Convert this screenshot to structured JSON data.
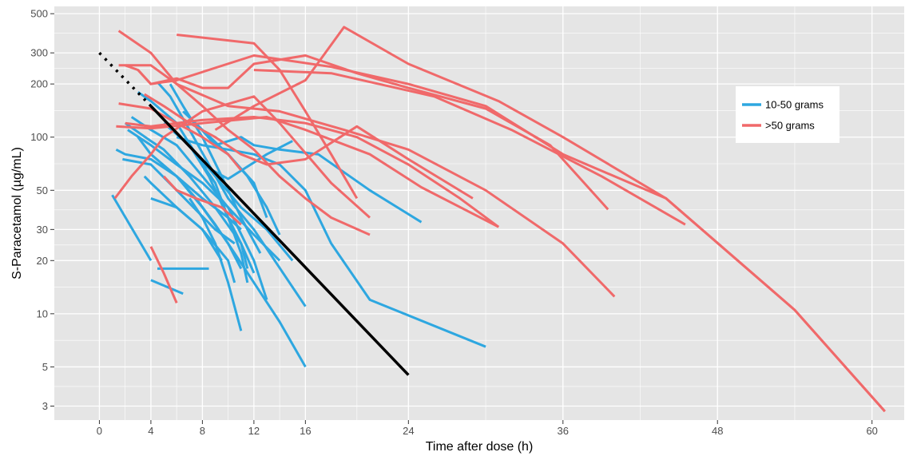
{
  "chart_data": {
    "type": "line",
    "title": "",
    "xlabel": "Time after dose (h)",
    "ylabel": "S-Paracetamol (µg/mL)",
    "x_scale": "linear",
    "y_scale": "log",
    "xlim": [
      -3.5,
      62.5
    ],
    "ylim": [
      2.5,
      550
    ],
    "x_ticks": [
      0,
      4,
      8,
      12,
      16,
      24,
      36,
      48,
      60
    ],
    "x_tick_labels": [
      "0",
      "4",
      "8",
      "12",
      "16",
      "24",
      "36",
      "48",
      "60"
    ],
    "y_ticks": [
      3,
      5,
      10,
      20,
      30,
      50,
      100,
      200,
      300,
      500
    ],
    "y_tick_labels": [
      "3",
      "5",
      "10",
      "20",
      "30",
      "50",
      "100",
      "200",
      "300",
      "500"
    ],
    "grid": true,
    "legend_position": "right",
    "colors": {
      "panel_background": "#e5e5e5",
      "grid_line": "#ffffff",
      "nomogram_line": "#000000"
    },
    "series": [
      {
        "name": "10-50 grams",
        "color": "#2ea7e0",
        "lines": [
          [
            [
              1,
              47
            ],
            [
              4,
              20
            ]
          ],
          [
            [
              1.3,
              85
            ],
            [
              2,
              80
            ],
            [
              4,
              75
            ],
            [
              6,
              60
            ],
            [
              8,
              45
            ],
            [
              10,
              35
            ],
            [
              11,
              30
            ]
          ],
          [
            [
              1.8,
              75
            ],
            [
              4,
              70
            ],
            [
              6,
              50
            ],
            [
              9,
              30
            ],
            [
              10.5,
              25
            ]
          ],
          [
            [
              2,
              120
            ],
            [
              4,
              95
            ],
            [
              5,
              85
            ],
            [
              7,
              60
            ],
            [
              9,
              40
            ],
            [
              11,
              25
            ],
            [
              12,
              17
            ]
          ],
          [
            [
              2.2,
              110
            ],
            [
              4,
              90
            ],
            [
              6,
              70
            ],
            [
              8,
              55
            ],
            [
              10,
              40
            ],
            [
              12,
              28
            ],
            [
              14,
              20
            ]
          ],
          [
            [
              2.5,
              130
            ],
            [
              4,
              110
            ],
            [
              6,
              90
            ],
            [
              8,
              60
            ],
            [
              10,
              40
            ],
            [
              12,
              20
            ],
            [
              13,
              12
            ]
          ],
          [
            [
              3,
              100
            ],
            [
              4,
              80
            ],
            [
              6,
              60
            ],
            [
              8,
              40
            ],
            [
              10,
              25
            ],
            [
              11,
              18
            ]
          ],
          [
            [
              3,
              180
            ],
            [
              4,
              160
            ],
            [
              6,
              120
            ],
            [
              8,
              70
            ],
            [
              10,
              58
            ],
            [
              13,
              80
            ],
            [
              15,
              95
            ]
          ],
          [
            [
              3.5,
              60
            ],
            [
              4,
              55
            ],
            [
              6,
              40
            ],
            [
              8,
              30
            ],
            [
              9.5,
              20
            ]
          ],
          [
            [
              4,
              45
            ],
            [
              6,
              40
            ],
            [
              8,
              30
            ],
            [
              10,
              20
            ],
            [
              10.5,
              15
            ]
          ],
          [
            [
              4,
              15.5
            ],
            [
              6.5,
              13
            ]
          ],
          [
            [
              4.5,
              205
            ],
            [
              5.5,
              170
            ],
            [
              7,
              110
            ],
            [
              8.5,
              70
            ],
            [
              10,
              45
            ],
            [
              12,
              30
            ],
            [
              16,
              11
            ]
          ],
          [
            [
              4.5,
              18
            ],
            [
              8.5,
              18
            ]
          ],
          [
            [
              5,
              120
            ],
            [
              7,
              90
            ],
            [
              9,
              60
            ],
            [
              11,
              40
            ],
            [
              13,
              30
            ],
            [
              15,
              20
            ]
          ],
          [
            [
              5.5,
              200
            ],
            [
              6.5,
              150
            ],
            [
              8,
              100
            ],
            [
              9.5,
              60
            ],
            [
              11,
              35
            ],
            [
              12.5,
              22
            ]
          ],
          [
            [
              6,
              100
            ],
            [
              8,
              90
            ],
            [
              10,
              85
            ],
            [
              12,
              80
            ],
            [
              14,
              70
            ],
            [
              16,
              50
            ],
            [
              18,
              25
            ],
            [
              21,
              12
            ],
            [
              30,
              6.5
            ]
          ],
          [
            [
              6,
              60
            ],
            [
              7.5,
              45
            ],
            [
              9,
              32
            ],
            [
              10.5,
              22
            ],
            [
              12,
              15
            ],
            [
              14,
              9
            ],
            [
              16,
              5
            ]
          ],
          [
            [
              6.5,
              140
            ],
            [
              8,
              110
            ],
            [
              10,
              80
            ],
            [
              12,
              55
            ],
            [
              13,
              35
            ]
          ],
          [
            [
              7,
              90
            ],
            [
              8.5,
              60
            ],
            [
              10,
              35
            ],
            [
              11,
              25
            ],
            [
              11.5,
              18
            ]
          ],
          [
            [
              7,
              45
            ],
            [
              8,
              35
            ],
            [
              9,
              25
            ],
            [
              10,
              15
            ],
            [
              11,
              8
            ]
          ],
          [
            [
              7.5,
              120
            ],
            [
              9,
              90
            ],
            [
              11,
              100
            ],
            [
              12,
              90
            ],
            [
              14,
              85
            ],
            [
              17,
              80
            ],
            [
              21,
              50
            ],
            [
              25,
              33
            ]
          ],
          [
            [
              8,
              70
            ],
            [
              9,
              55
            ],
            [
              10,
              35
            ],
            [
              11,
              22
            ],
            [
              11.5,
              15
            ]
          ],
          [
            [
              8.5,
              95
            ],
            [
              10,
              80
            ],
            [
              11.5,
              60
            ],
            [
              13,
              40
            ],
            [
              14,
              28
            ]
          ]
        ]
      },
      {
        "name": ">50 grams",
        "color": "#f0696a",
        "lines": [
          [
            [
              1.2,
              45
            ],
            [
              2.5,
              60
            ],
            [
              4,
              80
            ],
            [
              5,
              100
            ],
            [
              8,
              140
            ],
            [
              12,
              170
            ],
            [
              14,
              120
            ],
            [
              18,
              55
            ],
            [
              21,
              35
            ]
          ],
          [
            [
              1.3,
              115
            ],
            [
              4,
              112
            ],
            [
              8,
              120
            ],
            [
              13,
              130
            ],
            [
              16,
              110
            ],
            [
              21,
              80
            ],
            [
              25,
              52
            ],
            [
              31,
              31
            ]
          ],
          [
            [
              1.5,
              400
            ],
            [
              4,
              300
            ],
            [
              6,
              200
            ],
            [
              8,
              150
            ],
            [
              10,
              110
            ],
            [
              12,
              85
            ],
            [
              14,
              60
            ],
            [
              16,
              45
            ],
            [
              18,
              35
            ],
            [
              21,
              28
            ]
          ],
          [
            [
              1.5,
              255
            ],
            [
              4,
              255
            ],
            [
              6,
              200
            ],
            [
              10,
              150
            ],
            [
              14,
              140
            ],
            [
              19,
              110
            ],
            [
              24,
              85
            ],
            [
              30,
              50
            ],
            [
              36,
              25
            ],
            [
              40,
              12.5
            ]
          ],
          [
            [
              1.5,
              155
            ],
            [
              4,
              145
            ],
            [
              6,
              120
            ],
            [
              8,
              100
            ],
            [
              10,
              80
            ],
            [
              11,
              65
            ]
          ],
          [
            [
              2,
              120
            ],
            [
              4,
              115
            ],
            [
              8,
              125
            ],
            [
              12,
              130
            ],
            [
              16,
              120
            ],
            [
              20,
              100
            ],
            [
              24,
              70
            ],
            [
              28,
              45
            ],
            [
              31,
              31
            ]
          ],
          [
            [
              2,
              255
            ],
            [
              3,
              240
            ],
            [
              4,
              200
            ],
            [
              6,
              215
            ],
            [
              8,
              190
            ],
            [
              10,
              190
            ],
            [
              12,
              260
            ],
            [
              16,
              290
            ],
            [
              20,
              230
            ],
            [
              24,
              190
            ],
            [
              30,
              145
            ],
            [
              35,
              90
            ],
            [
              39.5,
              39
            ]
          ],
          [
            [
              3,
              240
            ],
            [
              4,
              200
            ],
            [
              6,
              210
            ],
            [
              12,
              290
            ],
            [
              18,
              250
            ],
            [
              24,
              200
            ],
            [
              30,
              150
            ],
            [
              36,
              80
            ],
            [
              44,
              45
            ],
            [
              54,
              10.5
            ],
            [
              61,
              2.8
            ]
          ],
          [
            [
              3.5,
              175
            ],
            [
              5,
              150
            ],
            [
              7,
              120
            ],
            [
              9,
              100
            ],
            [
              11,
              80
            ],
            [
              13,
              70
            ],
            [
              16,
              75
            ],
            [
              20,
              115
            ],
            [
              24,
              75
            ],
            [
              29,
              45
            ]
          ],
          [
            [
              4,
              24
            ],
            [
              5,
              17
            ],
            [
              6,
              11.5
            ]
          ],
          [
            [
              5,
              60
            ],
            [
              6,
              50
            ],
            [
              7.5,
              45
            ],
            [
              9.5,
              40
            ],
            [
              11,
              32
            ]
          ],
          [
            [
              6,
              380
            ],
            [
              12,
              340
            ],
            [
              14,
              240
            ],
            [
              16,
              140
            ],
            [
              18,
              80
            ],
            [
              20,
              45
            ]
          ],
          [
            [
              9,
              110
            ],
            [
              12,
              150
            ],
            [
              16,
              210
            ],
            [
              19,
              420
            ],
            [
              24,
              260
            ],
            [
              31,
              160
            ],
            [
              36,
              100
            ],
            [
              44,
              45
            ],
            [
              54,
              10.5
            ],
            [
              61,
              2.8
            ]
          ],
          [
            [
              12,
              240
            ],
            [
              18,
              230
            ],
            [
              26,
              170
            ],
            [
              32,
              110
            ],
            [
              39,
              60
            ],
            [
              45.5,
              32
            ]
          ]
        ]
      }
    ],
    "nomogram": {
      "solid": [
        [
          4,
          150
        ],
        [
          24,
          4.5
        ]
      ],
      "dotted": [
        [
          0,
          300
        ],
        [
          4,
          150
        ]
      ]
    }
  },
  "legend": {
    "items": [
      {
        "label": "10-50 grams",
        "color": "#2ea7e0"
      },
      {
        "label": ">50 grams",
        "color": "#f0696a"
      }
    ]
  }
}
